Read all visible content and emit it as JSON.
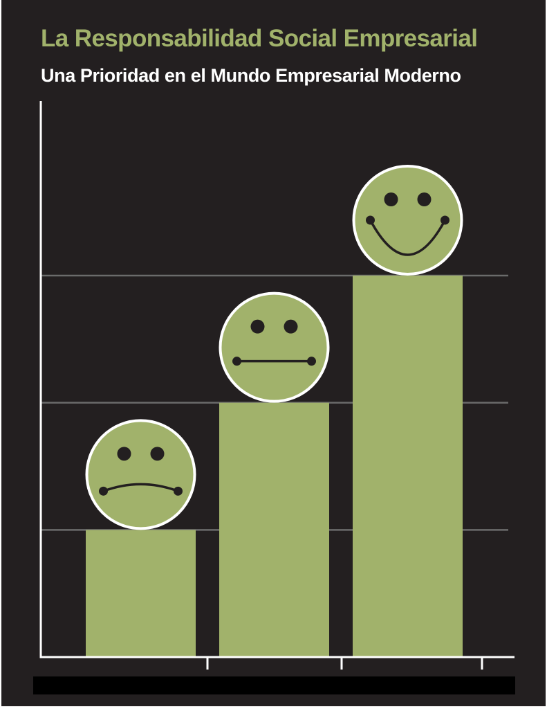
{
  "title": "La Responsabilidad Social Empresarial",
  "subtitle": "Una Prioridad en el Mundo Empresarial Moderno",
  "colors": {
    "background": "#231f20",
    "title": "#a1b26b",
    "subtitle": "#ffffff",
    "bar": "#a1b26b",
    "face_fill": "#a1b26b",
    "face_outline": "#ffffff",
    "face_features": "#231f20",
    "axis": "#ffffff",
    "gridline": "#6b6b6b",
    "footer": "#000000"
  },
  "chart_data": {
    "type": "bar",
    "categories": [
      "",
      "",
      ""
    ],
    "values": [
      1,
      2,
      3
    ],
    "ylim": [
      0,
      3
    ],
    "grid": true,
    "annotations": [
      {
        "category_index": 0,
        "icon": "sad-face-icon"
      },
      {
        "category_index": 1,
        "icon": "neutral-face-icon"
      },
      {
        "category_index": 2,
        "icon": "happy-face-icon"
      }
    ]
  }
}
